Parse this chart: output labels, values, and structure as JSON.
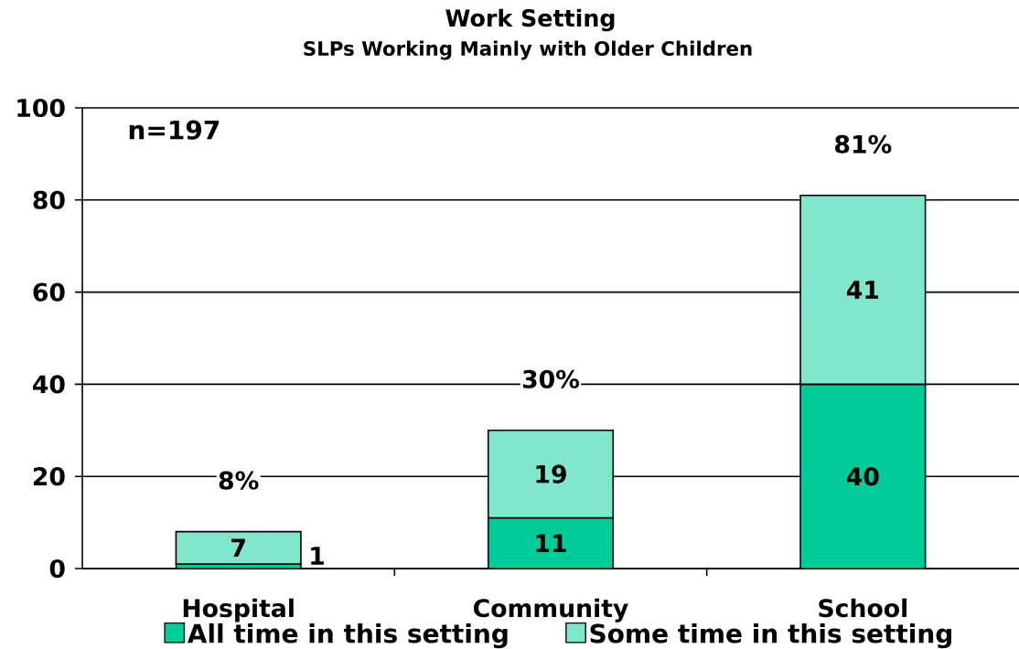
{
  "chart_data": {
    "type": "bar",
    "stacked": true,
    "title": "Work Setting",
    "subtitle": "SLPs Working Mainly with Older Children",
    "categories": [
      "Hospital",
      "Community",
      "School"
    ],
    "series": [
      {
        "name": "All time in this setting",
        "color": "#00cc99",
        "values": [
          1,
          11,
          40
        ]
      },
      {
        "name": "Some time in this setting",
        "color": "#80e6cc",
        "values": [
          7,
          19,
          41
        ]
      }
    ],
    "totals": [
      "8%",
      "30%",
      "81%"
    ],
    "data_labels": true,
    "annotations": [
      "n=197"
    ],
    "ylim": [
      0,
      100
    ],
    "yticks": [
      0,
      20,
      40,
      60,
      80,
      100
    ],
    "grid": "y",
    "legend": "bottom"
  }
}
